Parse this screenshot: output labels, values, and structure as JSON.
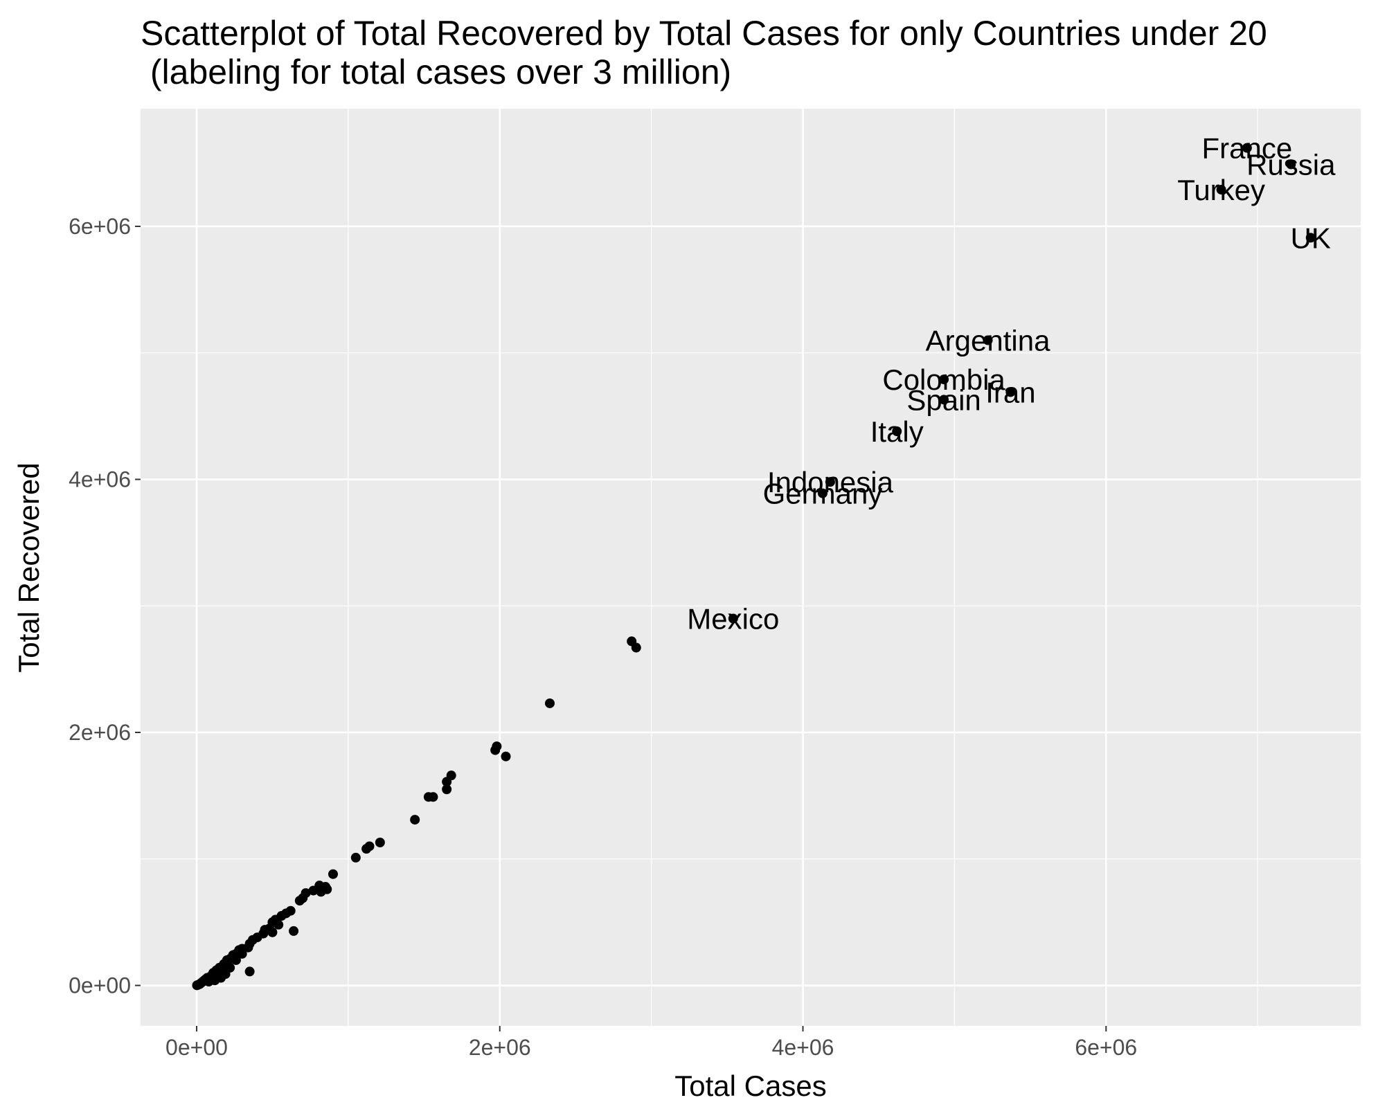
{
  "chart_data": {
    "type": "scatter",
    "title": "Scatterplot of Total Recovered by Total Cases for only Countries under 20",
    "subtitle": " (labeling for total cases over 3 million)",
    "xlabel": "Total Cases",
    "ylabel": "Total Recovered",
    "xlim": [
      -370000,
      7680000
    ],
    "ylim": [
      -320000,
      6930000
    ],
    "x_ticks": [
      0,
      2000000,
      4000000,
      6000000
    ],
    "x_tick_labels": [
      "0e+00",
      "2e+06",
      "4e+06",
      "6e+06"
    ],
    "y_ticks": [
      0,
      2000000,
      4000000,
      6000000
    ],
    "y_tick_labels": [
      "0e+00",
      "2e+06",
      "4e+06",
      "6e+06"
    ],
    "grid": true,
    "legend": "none",
    "colors": {
      "panel": "#ebebeb",
      "grid": "#ffffff",
      "point": "#000000"
    },
    "labeled_points": [
      {
        "label": "France",
        "x": 6930000,
        "y": 6620000
      },
      {
        "label": "Russia",
        "x": 7220000,
        "y": 6490000
      },
      {
        "label": "Turkey",
        "x": 6760000,
        "y": 6290000
      },
      {
        "label": "UK",
        "x": 7350000,
        "y": 5910000
      },
      {
        "label": "Argentina",
        "x": 5220000,
        "y": 5100000
      },
      {
        "label": "Colombia",
        "x": 4930000,
        "y": 4790000
      },
      {
        "label": "Iran",
        "x": 5370000,
        "y": 4690000
      },
      {
        "label": "Spain",
        "x": 4930000,
        "y": 4630000
      },
      {
        "label": "Italy",
        "x": 4620000,
        "y": 4380000
      },
      {
        "label": "Indonesia",
        "x": 4180000,
        "y": 3980000
      },
      {
        "label": "Germany",
        "x": 4130000,
        "y": 3890000
      },
      {
        "label": "Mexico",
        "x": 3540000,
        "y": 2900000
      }
    ],
    "points": [
      {
        "x": 2870000,
        "y": 2720000
      },
      {
        "x": 2900000,
        "y": 2670000
      },
      {
        "x": 2330000,
        "y": 2230000
      },
      {
        "x": 1970000,
        "y": 1860000
      },
      {
        "x": 1980000,
        "y": 1890000
      },
      {
        "x": 2040000,
        "y": 1810000
      },
      {
        "x": 1680000,
        "y": 1660000
      },
      {
        "x": 1650000,
        "y": 1610000
      },
      {
        "x": 1650000,
        "y": 1550000
      },
      {
        "x": 1530000,
        "y": 1490000
      },
      {
        "x": 1560000,
        "y": 1490000
      },
      {
        "x": 1440000,
        "y": 1310000
      },
      {
        "x": 1210000,
        "y": 1130000
      },
      {
        "x": 1140000,
        "y": 1100000
      },
      {
        "x": 1120000,
        "y": 1080000
      },
      {
        "x": 1050000,
        "y": 1010000
      },
      {
        "x": 900000,
        "y": 880000
      },
      {
        "x": 810000,
        "y": 790000
      },
      {
        "x": 850000,
        "y": 780000
      },
      {
        "x": 860000,
        "y": 760000
      },
      {
        "x": 770000,
        "y": 750000
      },
      {
        "x": 820000,
        "y": 740000
      },
      {
        "x": 720000,
        "y": 730000
      },
      {
        "x": 700000,
        "y": 690000
      },
      {
        "x": 680000,
        "y": 670000
      },
      {
        "x": 620000,
        "y": 590000
      },
      {
        "x": 590000,
        "y": 570000
      },
      {
        "x": 560000,
        "y": 550000
      },
      {
        "x": 520000,
        "y": 520000
      },
      {
        "x": 500000,
        "y": 500000
      },
      {
        "x": 540000,
        "y": 480000
      },
      {
        "x": 480000,
        "y": 450000
      },
      {
        "x": 450000,
        "y": 440000
      },
      {
        "x": 500000,
        "y": 420000
      },
      {
        "x": 640000,
        "y": 430000
      },
      {
        "x": 440000,
        "y": 410000
      },
      {
        "x": 400000,
        "y": 380000
      },
      {
        "x": 370000,
        "y": 360000
      },
      {
        "x": 350000,
        "y": 330000
      },
      {
        "x": 340000,
        "y": 300000
      },
      {
        "x": 300000,
        "y": 290000
      },
      {
        "x": 280000,
        "y": 280000
      },
      {
        "x": 260000,
        "y": 250000
      },
      {
        "x": 240000,
        "y": 240000
      },
      {
        "x": 220000,
        "y": 210000
      },
      {
        "x": 200000,
        "y": 200000
      },
      {
        "x": 180000,
        "y": 170000
      },
      {
        "x": 170000,
        "y": 150000
      },
      {
        "x": 150000,
        "y": 140000
      },
      {
        "x": 130000,
        "y": 120000
      },
      {
        "x": 110000,
        "y": 100000
      },
      {
        "x": 100000,
        "y": 80000
      },
      {
        "x": 90000,
        "y": 70000
      },
      {
        "x": 70000,
        "y": 60000
      },
      {
        "x": 60000,
        "y": 50000
      },
      {
        "x": 50000,
        "y": 40000
      },
      {
        "x": 40000,
        "y": 30000
      },
      {
        "x": 30000,
        "y": 20000
      },
      {
        "x": 20000,
        "y": 10000
      },
      {
        "x": 10000,
        "y": 5000
      },
      {
        "x": 5000,
        "y": 3000
      },
      {
        "x": 2000,
        "y": 1000
      },
      {
        "x": 350000,
        "y": 110000
      },
      {
        "x": 160000,
        "y": 60000
      },
      {
        "x": 190000,
        "y": 90000
      },
      {
        "x": 220000,
        "y": 140000
      },
      {
        "x": 120000,
        "y": 40000
      },
      {
        "x": 260000,
        "y": 200000
      },
      {
        "x": 300000,
        "y": 250000
      },
      {
        "x": 80000,
        "y": 30000
      },
      {
        "x": 140000,
        "y": 90000
      }
    ]
  }
}
